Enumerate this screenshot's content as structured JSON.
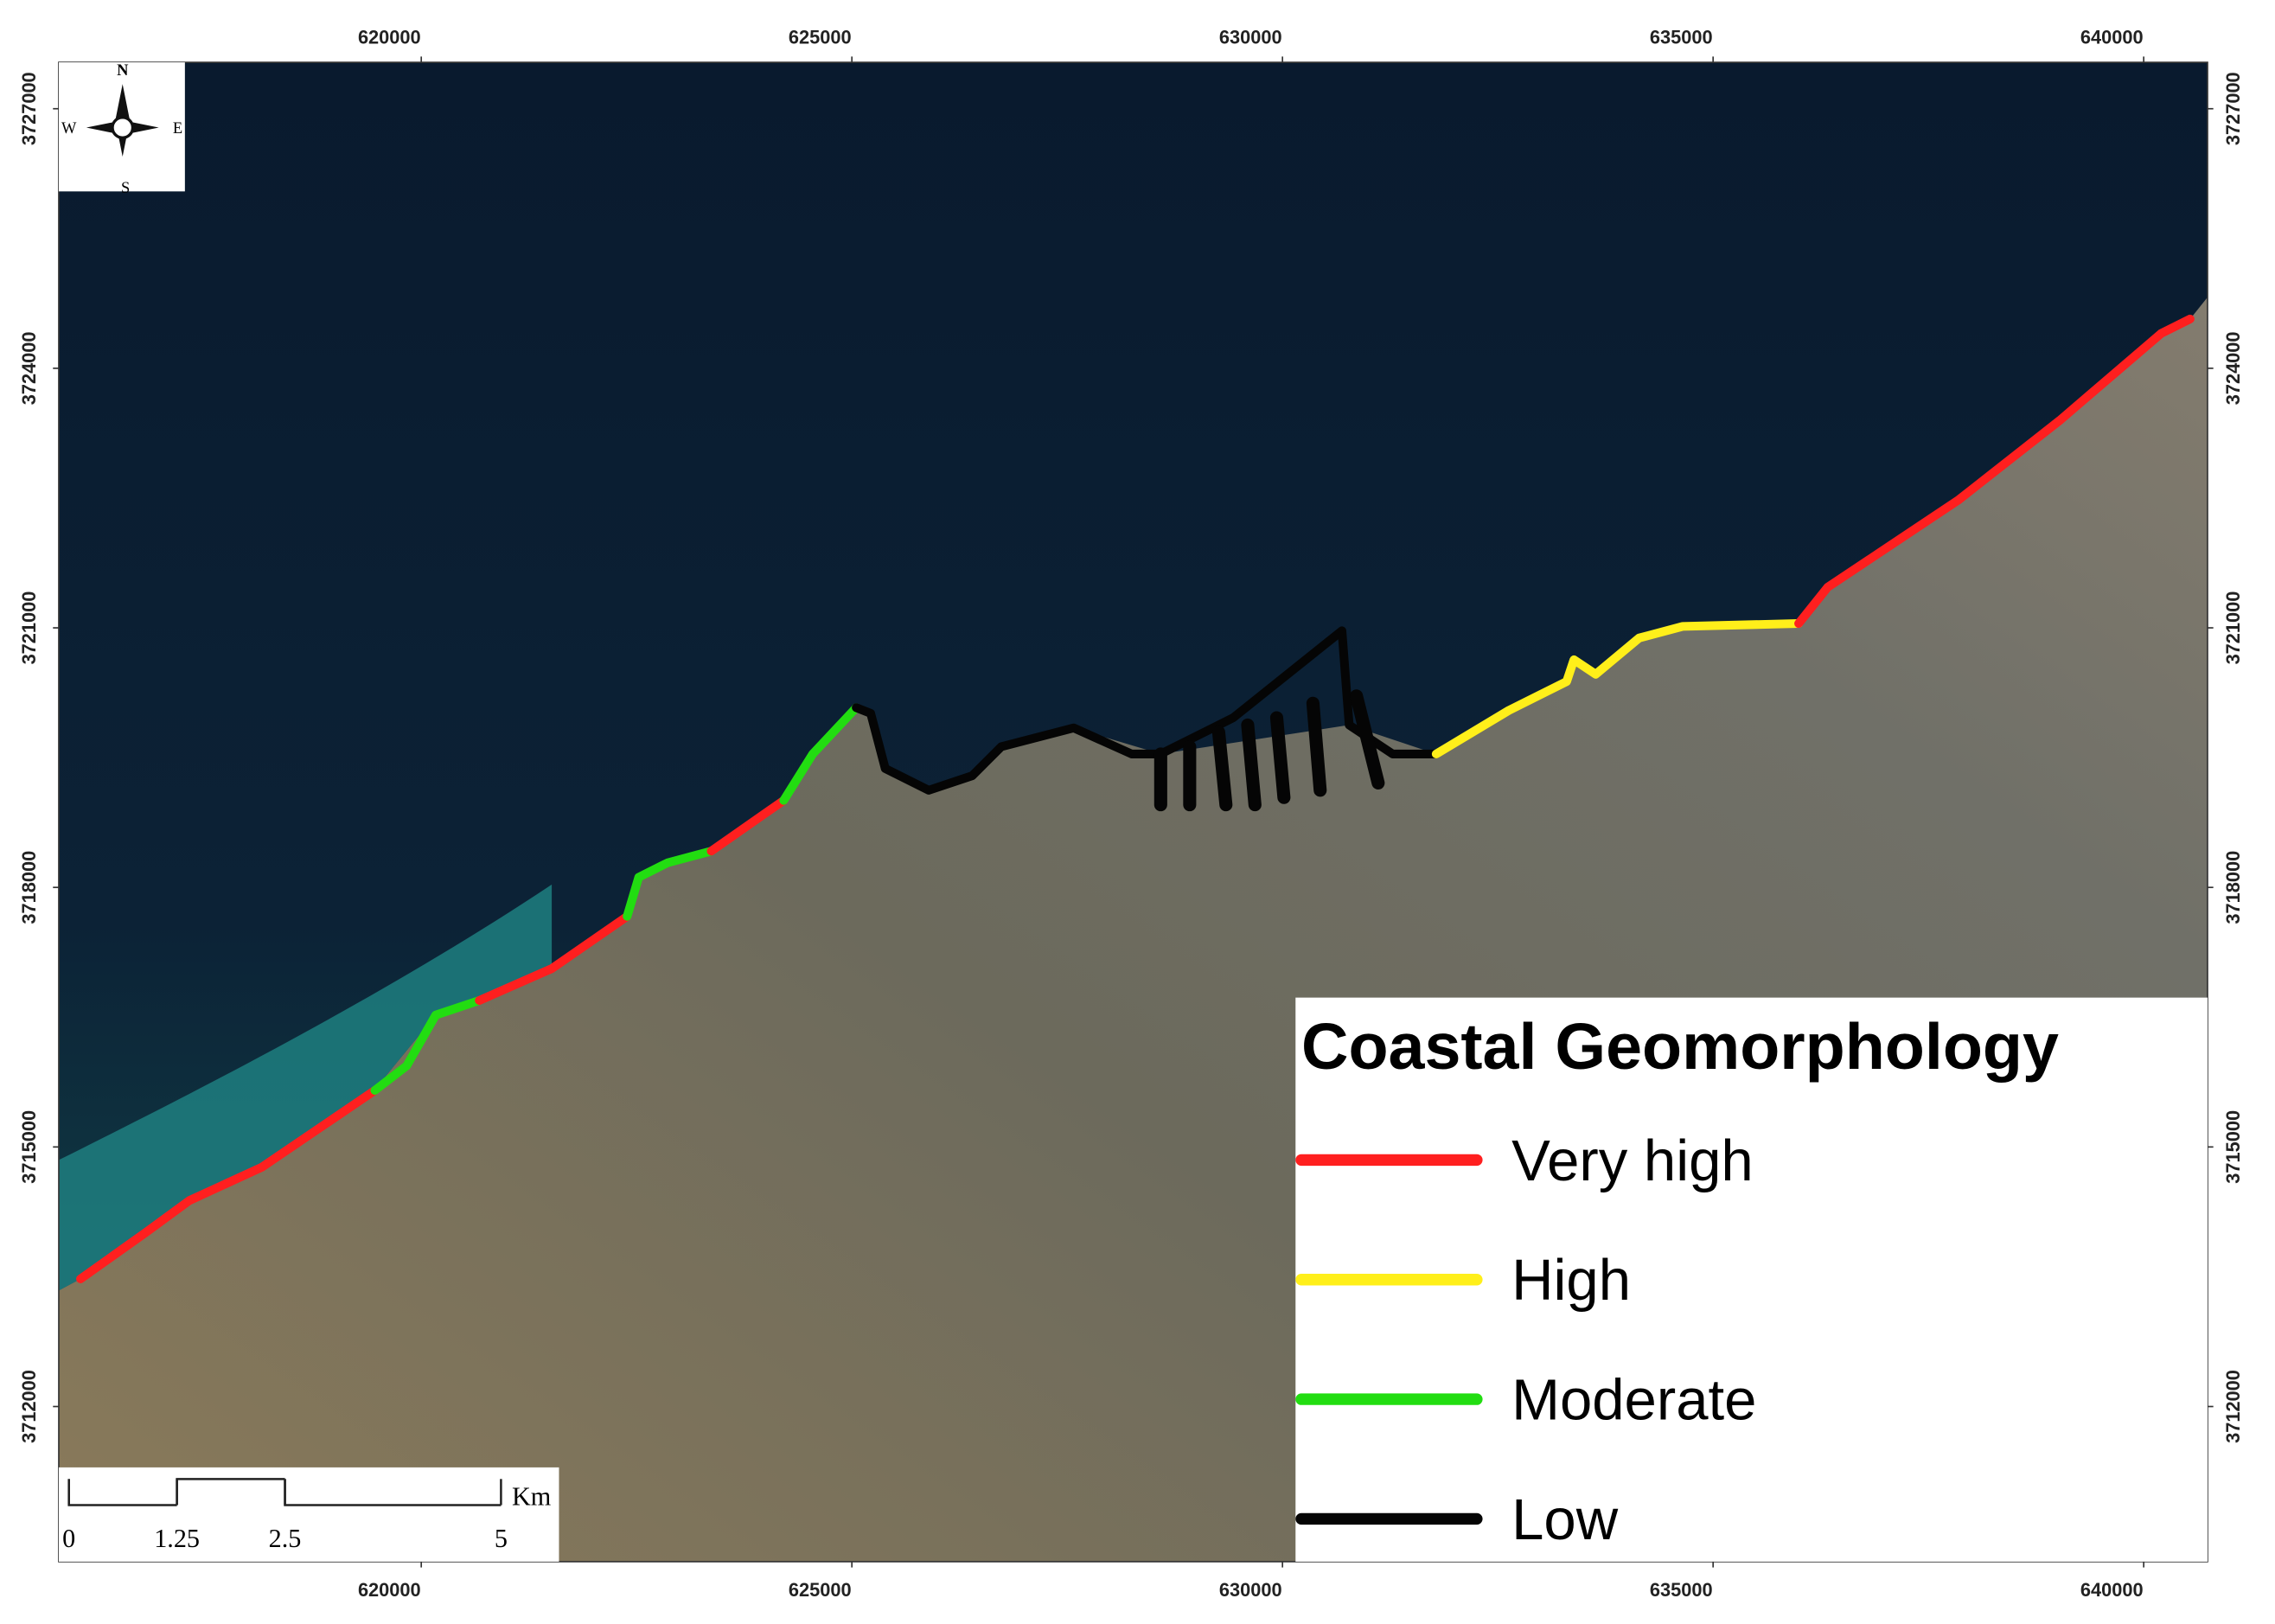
{
  "map": {
    "xlim": [
      615791,
      640741
    ],
    "ylim": [
      3710207,
      3727536
    ],
    "xticks": [
      620000,
      625000,
      630000,
      635000,
      640000
    ],
    "yticks": [
      3727000,
      3724000,
      3721000,
      3718000,
      3715000,
      3712000
    ],
    "compass": {
      "n": "N",
      "s": "S",
      "e": "E",
      "w": "W"
    },
    "scale_bar": {
      "ticks": [
        0,
        1.25,
        2.5,
        5
      ],
      "unit": "Km"
    },
    "legend": {
      "title": "Coastal Geomorphology",
      "items": [
        {
          "label": "Very high",
          "color": "#ff1f1f"
        },
        {
          "label": "High",
          "color": "#ffef1a"
        },
        {
          "label": "Moderate",
          "color": "#22dd11"
        },
        {
          "label": "Low",
          "color": "#050505"
        }
      ]
    }
  }
}
